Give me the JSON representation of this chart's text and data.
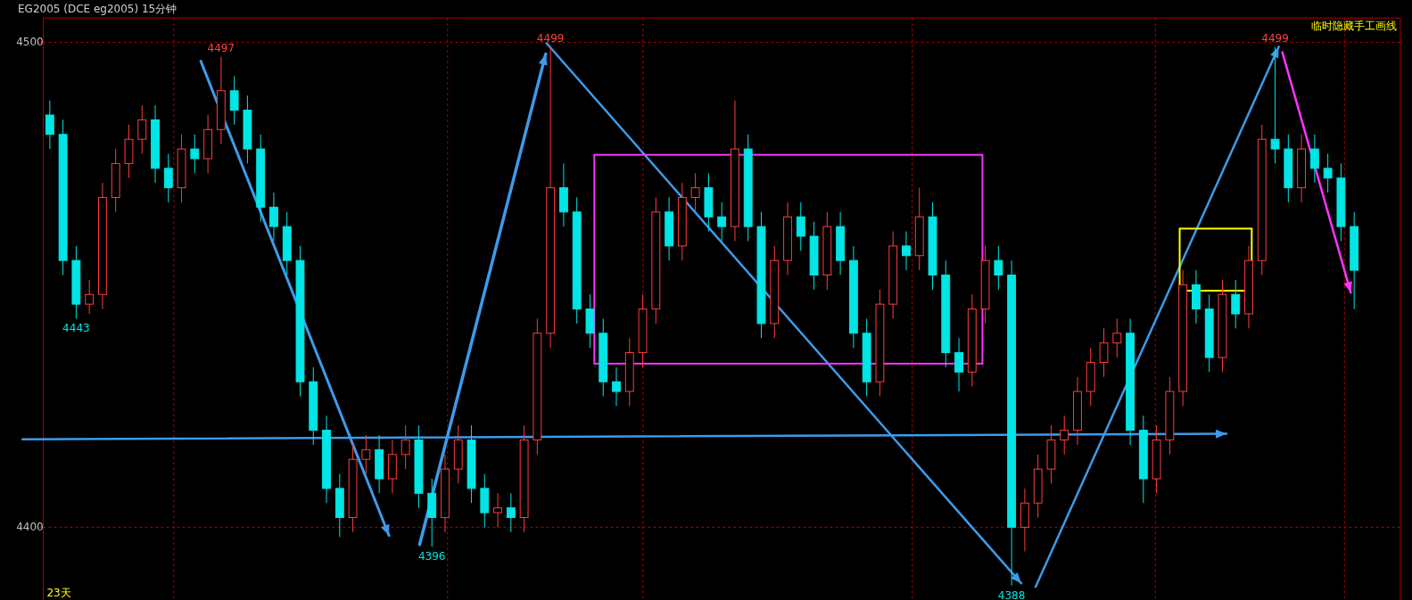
{
  "chart_data": {
    "type": "candlestick",
    "title": "EG2005  (DCE eg2005)  15分钟",
    "categories": [
      null,
      null,
      null,
      null,
      null,
      null,
      null,
      null,
      null,
      null,
      null,
      null,
      null,
      null,
      null,
      null,
      null,
      null,
      null,
      null,
      null,
      null,
      null,
      null,
      null,
      null,
      null,
      null,
      null,
      null,
      null,
      null,
      null,
      null,
      null,
      null,
      null,
      null,
      null,
      null,
      null,
      null,
      null,
      null,
      null,
      null,
      null,
      null,
      null,
      null,
      null,
      null,
      null,
      null,
      null,
      null,
      null,
      null,
      null,
      null,
      null,
      null,
      null,
      null,
      null,
      null,
      null,
      null,
      null,
      null,
      null,
      null,
      null,
      null,
      null,
      null,
      null,
      null,
      null,
      null,
      null,
      null,
      null,
      null,
      null,
      null,
      null,
      null,
      null,
      null,
      null,
      null,
      null,
      null,
      null,
      null,
      null,
      null,
      null,
      null
    ],
    "ohlc": [
      [
        4485,
        4488,
        4478,
        4481
      ],
      [
        4481,
        4484,
        4452,
        4455
      ],
      [
        4455,
        4458,
        4443,
        4446
      ],
      [
        4446,
        4451,
        4444,
        4448
      ],
      [
        4448,
        4471,
        4445,
        4468
      ],
      [
        4468,
        4478,
        4465,
        4475
      ],
      [
        4475,
        4483,
        4472,
        4480
      ],
      [
        4480,
        4487,
        4477,
        4484
      ],
      [
        4484,
        4487,
        4471,
        4474
      ],
      [
        4474,
        4477,
        4467,
        4470
      ],
      [
        4470,
        4481,
        4467,
        4478
      ],
      [
        4478,
        4481,
        4473,
        4476
      ],
      [
        4476,
        4485,
        4473,
        4482
      ],
      [
        4482,
        4497,
        4479,
        4490
      ],
      [
        4490,
        4493,
        4483,
        4486
      ],
      [
        4486,
        4489,
        4475,
        4478
      ],
      [
        4478,
        4481,
        4463,
        4466
      ],
      [
        4466,
        4469,
        4459,
        4462
      ],
      [
        4462,
        4465,
        4452,
        4455
      ],
      [
        4455,
        4458,
        4427,
        4430
      ],
      [
        4430,
        4433,
        4417,
        4420
      ],
      [
        4420,
        4423,
        4405,
        4408
      ],
      [
        4408,
        4411,
        4398,
        4402
      ],
      [
        4402,
        4417,
        4399,
        4414
      ],
      [
        4414,
        4419,
        4411,
        4416
      ],
      [
        4416,
        4419,
        4407,
        4410
      ],
      [
        4410,
        4418,
        4407,
        4415
      ],
      [
        4415,
        4421,
        4412,
        4418
      ],
      [
        4418,
        4421,
        4404,
        4407
      ],
      [
        4407,
        4410,
        4396,
        4402
      ],
      [
        4402,
        4415,
        4399,
        4412
      ],
      [
        4412,
        4421,
        4409,
        4418
      ],
      [
        4418,
        4421,
        4405,
        4408
      ],
      [
        4408,
        4411,
        4400,
        4403
      ],
      [
        4403,
        4407,
        4400,
        4404
      ],
      [
        4404,
        4407,
        4399,
        4402
      ],
      [
        4402,
        4421,
        4399,
        4418
      ],
      [
        4418,
        4443,
        4415,
        4440
      ],
      [
        4440,
        4499,
        4437,
        4470
      ],
      [
        4470,
        4475,
        4462,
        4465
      ],
      [
        4465,
        4468,
        4442,
        4445
      ],
      [
        4445,
        4448,
        4437,
        4440
      ],
      [
        4440,
        4443,
        4427,
        4430
      ],
      [
        4430,
        4433,
        4425,
        4428
      ],
      [
        4428,
        4439,
        4425,
        4436
      ],
      [
        4436,
        4448,
        4433,
        4445
      ],
      [
        4445,
        4468,
        4442,
        4465
      ],
      [
        4465,
        4468,
        4455,
        4458
      ],
      [
        4458,
        4471,
        4455,
        4468
      ],
      [
        4468,
        4473,
        4465,
        4470
      ],
      [
        4470,
        4473,
        4461,
        4464
      ],
      [
        4464,
        4467,
        4459,
        4462
      ],
      [
        4462,
        4488,
        4459,
        4478
      ],
      [
        4478,
        4481,
        4459,
        4462
      ],
      [
        4462,
        4465,
        4439,
        4442
      ],
      [
        4442,
        4458,
        4439,
        4455
      ],
      [
        4455,
        4467,
        4452,
        4464
      ],
      [
        4464,
        4467,
        4457,
        4460
      ],
      [
        4460,
        4463,
        4449,
        4452
      ],
      [
        4452,
        4465,
        4449,
        4462
      ],
      [
        4462,
        4465,
        4452,
        4455
      ],
      [
        4455,
        4458,
        4437,
        4440
      ],
      [
        4440,
        4443,
        4427,
        4430
      ],
      [
        4430,
        4449,
        4427,
        4446
      ],
      [
        4446,
        4461,
        4443,
        4458
      ],
      [
        4458,
        4461,
        4453,
        4456
      ],
      [
        4456,
        4470,
        4453,
        4464
      ],
      [
        4464,
        4467,
        4449,
        4452
      ],
      [
        4452,
        4455,
        4433,
        4436
      ],
      [
        4436,
        4439,
        4428,
        4432
      ],
      [
        4432,
        4448,
        4429,
        4445
      ],
      [
        4445,
        4458,
        4442,
        4455
      ],
      [
        4455,
        4458,
        4449,
        4452
      ],
      [
        4452,
        4455,
        4388,
        4400
      ],
      [
        4400,
        4408,
        4395,
        4405
      ],
      [
        4405,
        4415,
        4402,
        4412
      ],
      [
        4412,
        4421,
        4409,
        4418
      ],
      [
        4418,
        4423,
        4415,
        4420
      ],
      [
        4420,
        4431,
        4417,
        4428
      ],
      [
        4428,
        4437,
        4425,
        4434
      ],
      [
        4434,
        4441,
        4431,
        4438
      ],
      [
        4438,
        4443,
        4435,
        4440
      ],
      [
        4440,
        4443,
        4417,
        4420
      ],
      [
        4420,
        4423,
        4405,
        4410
      ],
      [
        4410,
        4421,
        4407,
        4418
      ],
      [
        4418,
        4431,
        4415,
        4428
      ],
      [
        4428,
        4453,
        4425,
        4450
      ],
      [
        4450,
        4453,
        4442,
        4445
      ],
      [
        4445,
        4448,
        4432,
        4435
      ],
      [
        4435,
        4451,
        4432,
        4448
      ],
      [
        4448,
        4451,
        4441,
        4444
      ],
      [
        4444,
        4458,
        4441,
        4455
      ],
      [
        4455,
        4483,
        4452,
        4480
      ],
      [
        4480,
        4499,
        4475,
        4478
      ],
      [
        4478,
        4481,
        4467,
        4470
      ],
      [
        4470,
        4481,
        4467,
        4478
      ],
      [
        4478,
        4481,
        4471,
        4474
      ],
      [
        4474,
        4477,
        4469,
        4472
      ],
      [
        4472,
        4475,
        4459,
        4462
      ],
      [
        4462,
        4465,
        4445,
        4453
      ]
    ],
    "ylim": [
      4385,
      4505
    ],
    "yticks": [
      4400,
      4500
    ],
    "grid": "y",
    "tick_labels": "y",
    "annotations": [
      {
        "text": "4497",
        "y": 4497
      },
      {
        "text": "4499",
        "y": 4499
      },
      {
        "text": "4499",
        "y": 4499
      },
      {
        "text": "4443",
        "y": 4443
      },
      {
        "text": "4396",
        "y": 4396
      },
      {
        "text": "4388",
        "y": 4388
      },
      "临时隐藏手工画线",
      "23天"
    ]
  }
}
